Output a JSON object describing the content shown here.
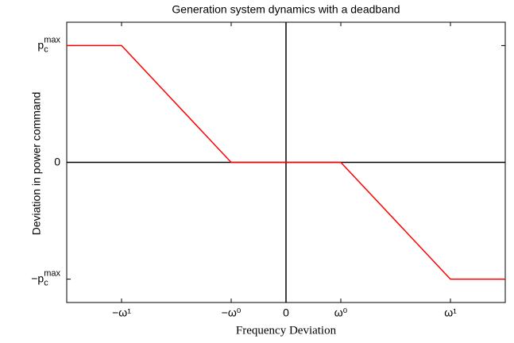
{
  "chart_data": {
    "type": "line",
    "title": "Generation system dynamics with a deadband",
    "xlabel": "Frequency Deviation",
    "ylabel": "Deviation in power command",
    "x": [
      -4,
      -3,
      -1,
      1,
      3,
      4
    ],
    "series": [
      {
        "color": "#ff0000",
        "values": [
          1,
          1,
          0,
          0,
          -1,
          -1
        ]
      }
    ],
    "xlim": [
      -4,
      4
    ],
    "xticks": [
      {
        "value": -3,
        "label": "−ω¹"
      },
      {
        "value": -1,
        "label": "−ω⁰"
      },
      0,
      {
        "value": 1,
        "label": "ω⁰"
      },
      {
        "value": 3,
        "label": "ω¹"
      }
    ],
    "ylim": [
      -1.2,
      1.2
    ],
    "yticks": [
      {
        "value": -1,
        "label": "−p",
        "sub": "c",
        "sup": "max"
      },
      0,
      {
        "value": 1,
        "label": "p",
        "sub": "c",
        "sup": "max"
      }
    ]
  }
}
